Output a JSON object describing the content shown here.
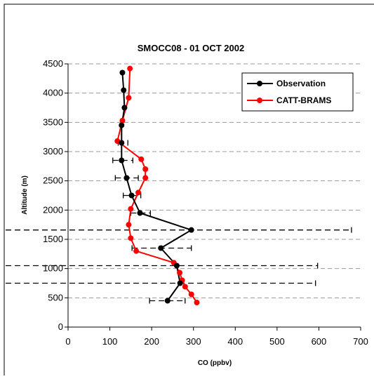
{
  "chart_data": {
    "type": "line",
    "title": "SMOCC08 - 01 OCT 2002",
    "xlabel": "CO (ppbv)",
    "ylabel": "Altitude (m)",
    "xlim": [
      0,
      700
    ],
    "ylim": [
      0,
      4500
    ],
    "x_ticks": [
      0,
      100,
      200,
      300,
      400,
      500,
      600,
      700
    ],
    "y_ticks": [
      0,
      500,
      1000,
      1500,
      2000,
      2500,
      3000,
      3500,
      4000,
      4500
    ],
    "grid": "horizontal dashed",
    "legend_position": "top-right",
    "series": [
      {
        "name": "Observation",
        "color": "#000000",
        "points": [
          {
            "x": 238,
            "y": 450,
            "xerr_low": 195,
            "xerr_high": 280
          },
          {
            "x": 268,
            "y": 750,
            "xerr_low": -200,
            "xerr_high": 592
          },
          {
            "x": 260,
            "y": 1050,
            "xerr_low": -200,
            "xerr_high": 597
          },
          {
            "x": 222,
            "y": 1350,
            "xerr_low": 153,
            "xerr_high": 295
          },
          {
            "x": 295,
            "y": 1660,
            "xerr_low": -200,
            "xerr_high": 678
          },
          {
            "x": 172,
            "y": 1950,
            "xerr_low": 150,
            "xerr_high": 197
          },
          {
            "x": 152,
            "y": 2250,
            "xerr_low": 132,
            "xerr_high": 174
          },
          {
            "x": 140,
            "y": 2550,
            "xerr_low": 113,
            "xerr_high": 168
          },
          {
            "x": 128,
            "y": 2850,
            "xerr_low": 107,
            "xerr_high": 155
          },
          {
            "x": 128,
            "y": 3150,
            "xerr_low": 120,
            "xerr_high": 143
          },
          {
            "x": 128,
            "y": 3450,
            "xerr_low": 128,
            "xerr_high": 128
          },
          {
            "x": 135,
            "y": 3750,
            "xerr_low": 135,
            "xerr_high": 135
          },
          {
            "x": 133,
            "y": 4050,
            "xerr_low": 133,
            "xerr_high": 133
          },
          {
            "x": 130,
            "y": 4350,
            "xerr_low": 130,
            "xerr_high": 130
          }
        ]
      },
      {
        "name": "CATT-BRAMS",
        "color": "#ff0000",
        "points": [
          {
            "x": 308,
            "y": 420
          },
          {
            "x": 295,
            "y": 560
          },
          {
            "x": 280,
            "y": 690
          },
          {
            "x": 273,
            "y": 800
          },
          {
            "x": 267,
            "y": 930
          },
          {
            "x": 253,
            "y": 1100
          },
          {
            "x": 163,
            "y": 1300
          },
          {
            "x": 150,
            "y": 1520
          },
          {
            "x": 145,
            "y": 1750
          },
          {
            "x": 150,
            "y": 2020
          },
          {
            "x": 168,
            "y": 2300
          },
          {
            "x": 185,
            "y": 2550
          },
          {
            "x": 185,
            "y": 2700
          },
          {
            "x": 175,
            "y": 2870
          },
          {
            "x": 118,
            "y": 3180
          },
          {
            "x": 130,
            "y": 3530
          },
          {
            "x": 145,
            "y": 3920
          },
          {
            "x": 148,
            "y": 4420
          }
        ]
      }
    ]
  }
}
